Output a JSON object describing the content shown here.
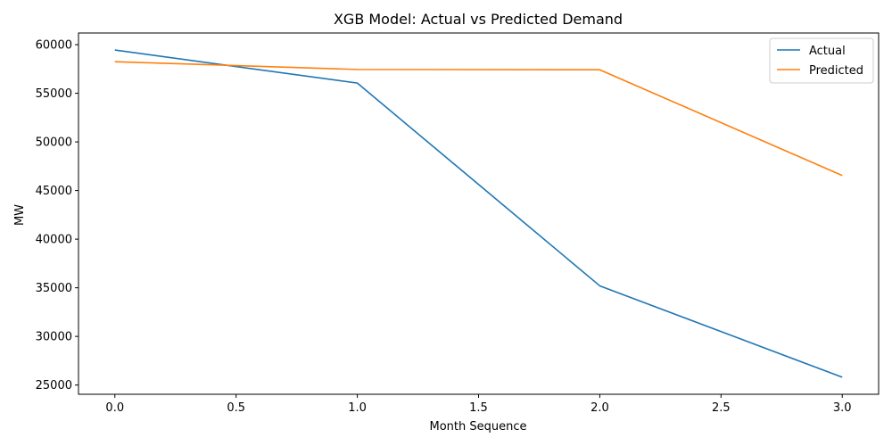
{
  "chart_data": {
    "type": "line",
    "title": "XGB Model: Actual vs Predicted Demand",
    "xlabel": "Month Sequence",
    "ylabel": "MW",
    "x": [
      0,
      1,
      2,
      3
    ],
    "xlim": [
      -0.15,
      3.15
    ],
    "ylim": [
      24050,
      61200
    ],
    "xticks": [
      0.0,
      0.5,
      1.0,
      1.5,
      2.0,
      2.5,
      3.0
    ],
    "xtick_labels": [
      "0.0",
      "0.5",
      "1.0",
      "1.5",
      "2.0",
      "2.5",
      "3.0"
    ],
    "yticks": [
      25000,
      30000,
      35000,
      40000,
      45000,
      50000,
      55000,
      60000
    ],
    "ytick_labels": [
      "25000",
      "30000",
      "35000",
      "40000",
      "45000",
      "50000",
      "55000",
      "60000"
    ],
    "grid": false,
    "legend_position": "top-right",
    "series": [
      {
        "name": "Actual",
        "color": "#1f77b4",
        "values": [
          59450,
          56050,
          35200,
          25800
        ]
      },
      {
        "name": "Predicted",
        "color": "#ff7f0e",
        "values": [
          58250,
          57450,
          57420,
          46550
        ]
      }
    ]
  }
}
